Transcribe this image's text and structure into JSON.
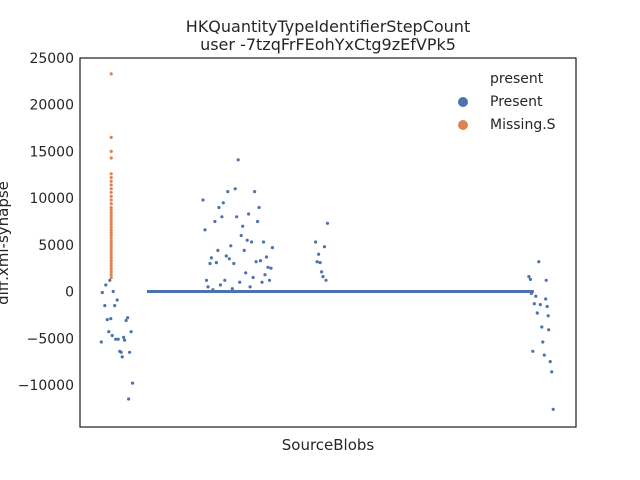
{
  "chart_data": {
    "type": "scatter",
    "title": "HKQuantityTypeIdentifierStepCount",
    "subtitle": "user -7tzqFrFEohYxCtg9zEfVPk5",
    "xlabel": "SourceBlobs",
    "ylabel": "diff.xml-synapse",
    "ylim": [
      -14500,
      25000
    ],
    "yticks": [
      25000,
      20000,
      15000,
      10000,
      5000,
      0,
      -5000,
      -10000
    ],
    "ytick_labels": [
      "25000",
      "20000",
      "15000",
      "10000",
      "5000",
      "0",
      "−5000",
      "−10000"
    ],
    "xlim": [
      0,
      1
    ],
    "grid": false,
    "legend": {
      "title": "present",
      "placement": "top-right",
      "entries": [
        {
          "name": "Present",
          "color": "#4c72b0"
        },
        {
          "name": "Missing.S",
          "color": "#dd8452"
        }
      ]
    },
    "series": [
      {
        "name": "Missing.S",
        "color": "#dd8452",
        "points": [
          [
            0.063,
            23300
          ],
          [
            0.063,
            16500
          ],
          [
            0.063,
            15000
          ],
          [
            0.063,
            14300
          ],
          [
            0.063,
            12600
          ],
          [
            0.063,
            12200
          ],
          [
            0.063,
            11800
          ],
          [
            0.063,
            11400
          ],
          [
            0.063,
            11000
          ],
          [
            0.063,
            10600
          ],
          [
            0.063,
            10200
          ],
          [
            0.063,
            9800
          ],
          [
            0.063,
            9400
          ],
          [
            0.063,
            9000
          ],
          [
            0.063,
            8700
          ],
          [
            0.063,
            8400
          ],
          [
            0.063,
            8100
          ],
          [
            0.063,
            7800
          ],
          [
            0.063,
            7500
          ],
          [
            0.063,
            7200
          ],
          [
            0.063,
            6900
          ],
          [
            0.063,
            6600
          ],
          [
            0.063,
            6300
          ],
          [
            0.063,
            6000
          ],
          [
            0.063,
            5700
          ],
          [
            0.063,
            5400
          ],
          [
            0.063,
            5100
          ],
          [
            0.063,
            4800
          ],
          [
            0.063,
            4500
          ],
          [
            0.063,
            4200
          ],
          [
            0.063,
            3900
          ],
          [
            0.063,
            3600
          ],
          [
            0.063,
            3300
          ],
          [
            0.063,
            3000
          ],
          [
            0.063,
            2700
          ],
          [
            0.063,
            2400
          ],
          [
            0.063,
            2100
          ],
          [
            0.063,
            1800
          ],
          [
            0.063,
            1500
          ]
        ]
      },
      {
        "name": "Present",
        "color": "#4c72b0",
        "baseline": {
          "x_start": 0.135,
          "x_end": 0.915,
          "y": 0
        },
        "points": [
          [
            0.043,
            -5400
          ],
          [
            0.045,
            -100
          ],
          [
            0.05,
            -1500
          ],
          [
            0.052,
            700
          ],
          [
            0.055,
            -3000
          ],
          [
            0.058,
            -4300
          ],
          [
            0.06,
            1200
          ],
          [
            0.062,
            -2900
          ],
          [
            0.065,
            -4700
          ],
          [
            0.067,
            0
          ],
          [
            0.07,
            -1500
          ],
          [
            0.072,
            -5100
          ],
          [
            0.075,
            -900
          ],
          [
            0.077,
            -5100
          ],
          [
            0.08,
            -6400
          ],
          [
            0.083,
            -6500
          ],
          [
            0.085,
            -7000
          ],
          [
            0.088,
            -4900
          ],
          [
            0.09,
            -5200
          ],
          [
            0.093,
            -3100
          ],
          [
            0.096,
            -2800
          ],
          [
            0.098,
            -11500
          ],
          [
            0.1,
            -6500
          ],
          [
            0.103,
            -4300
          ],
          [
            0.106,
            -9800
          ],
          [
            0.248,
            9800
          ],
          [
            0.252,
            6600
          ],
          [
            0.255,
            1200
          ],
          [
            0.258,
            500
          ],
          [
            0.262,
            3000
          ],
          [
            0.265,
            3600
          ],
          [
            0.268,
            200
          ],
          [
            0.272,
            7500
          ],
          [
            0.275,
            3100
          ],
          [
            0.278,
            4400
          ],
          [
            0.28,
            9000
          ],
          [
            0.283,
            700
          ],
          [
            0.286,
            8000
          ],
          [
            0.289,
            9500
          ],
          [
            0.292,
            1200
          ],
          [
            0.295,
            3800
          ],
          [
            0.298,
            10700
          ],
          [
            0.301,
            3500
          ],
          [
            0.304,
            4900
          ],
          [
            0.307,
            300
          ],
          [
            0.31,
            3000
          ],
          [
            0.313,
            11000
          ],
          [
            0.316,
            8000
          ],
          [
            0.319,
            14100
          ],
          [
            0.322,
            1000
          ],
          [
            0.325,
            6000
          ],
          [
            0.328,
            7000
          ],
          [
            0.331,
            4400
          ],
          [
            0.334,
            2000
          ],
          [
            0.337,
            5500
          ],
          [
            0.34,
            8300
          ],
          [
            0.343,
            500
          ],
          [
            0.346,
            5300
          ],
          [
            0.349,
            1500
          ],
          [
            0.352,
            10700
          ],
          [
            0.355,
            3200
          ],
          [
            0.358,
            7500
          ],
          [
            0.361,
            9000
          ],
          [
            0.364,
            3300
          ],
          [
            0.367,
            1000
          ],
          [
            0.37,
            5300
          ],
          [
            0.373,
            1800
          ],
          [
            0.376,
            3700
          ],
          [
            0.379,
            2600
          ],
          [
            0.382,
            1200
          ],
          [
            0.385,
            2500
          ],
          [
            0.388,
            4700
          ],
          [
            0.475,
            5300
          ],
          [
            0.478,
            3200
          ],
          [
            0.481,
            4000
          ],
          [
            0.484,
            3100
          ],
          [
            0.487,
            2100
          ],
          [
            0.49,
            1600
          ],
          [
            0.493,
            4800
          ],
          [
            0.496,
            1200
          ],
          [
            0.499,
            7300
          ],
          [
            0.905,
            1600
          ],
          [
            0.908,
            1300
          ],
          [
            0.91,
            -200
          ],
          [
            0.913,
            -6400
          ],
          [
            0.916,
            -1300
          ],
          [
            0.919,
            -500
          ],
          [
            0.922,
            -2300
          ],
          [
            0.925,
            3200
          ],
          [
            0.928,
            -1400
          ],
          [
            0.931,
            -3800
          ],
          [
            0.933,
            -5400
          ],
          [
            0.936,
            -6800
          ],
          [
            0.939,
            -800
          ],
          [
            0.942,
            -1600
          ],
          [
            0.945,
            -4100
          ],
          [
            0.948,
            -7500
          ],
          [
            0.951,
            -8600
          ],
          [
            0.954,
            -12600
          ],
          [
            0.94,
            1200
          ],
          [
            0.944,
            -2600
          ]
        ]
      }
    ]
  }
}
